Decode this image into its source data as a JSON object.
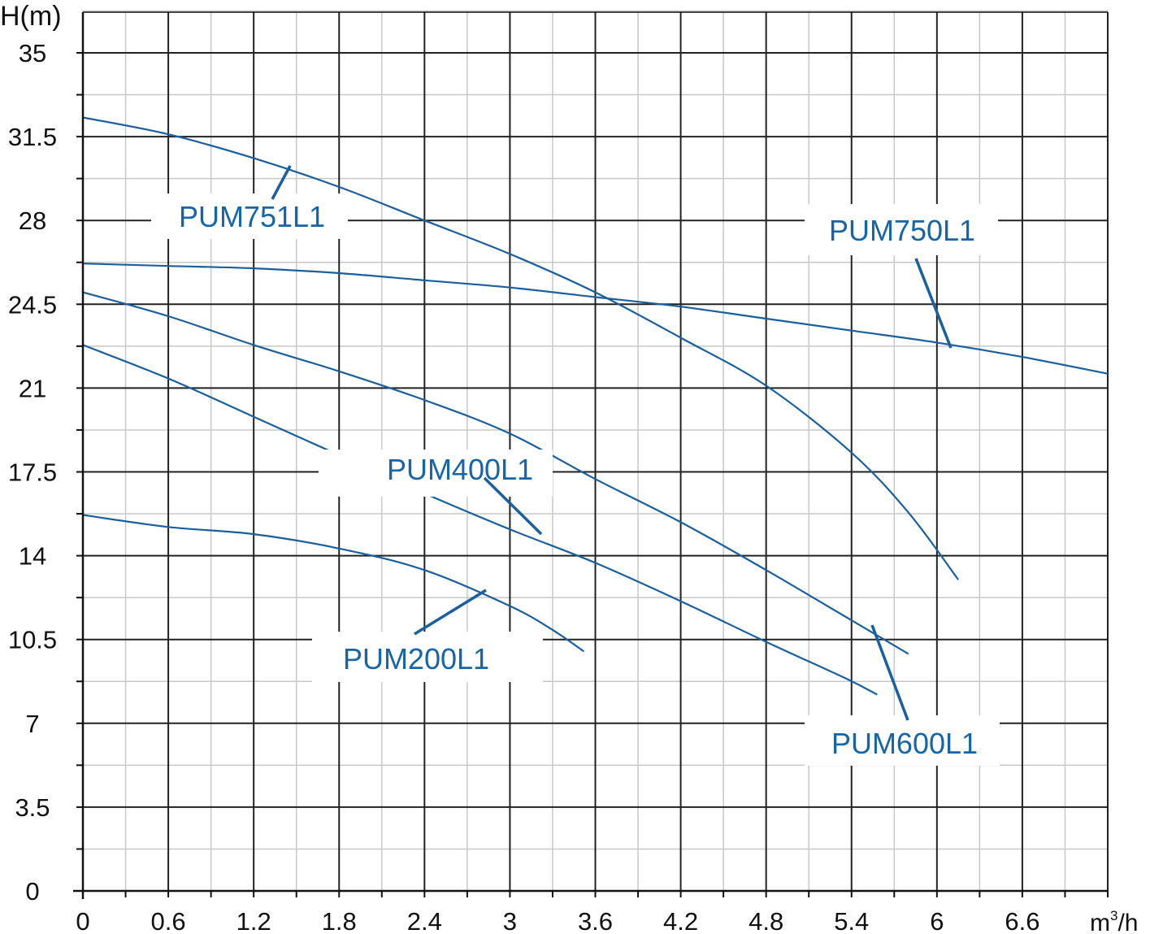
{
  "chart_data": {
    "type": "line",
    "ylabel": "H(m)",
    "xlabel_base": "m",
    "xlabel_sup": "3",
    "xlabel_tail": "/h",
    "xlim": [
      0,
      7.2
    ],
    "ylim": [
      0,
      35
    ],
    "x_ticks": [
      "0",
      "0.6",
      "1.2",
      "1.8",
      "2.4",
      "3",
      "3.6",
      "4.2",
      "4.8",
      "5.4",
      "6",
      "6.6"
    ],
    "y_ticks": [
      "0",
      "3.5",
      "7",
      "10.5",
      "14",
      "17.5",
      "21",
      "24.5",
      "28",
      "31.5",
      "35"
    ],
    "grid": true,
    "colors": {
      "curve": "#1a5f9e",
      "label": "#1565a8",
      "major_grid": "#222222",
      "minor_grid": "#c8c8c8"
    },
    "series": [
      {
        "name": "PUM751L1",
        "x": [
          0,
          0.6,
          1.2,
          1.8,
          2.4,
          3.0,
          3.6,
          4.2,
          4.8,
          5.4,
          5.8,
          6.15
        ],
        "y": [
          32.3,
          31.6,
          30.6,
          29.4,
          28.0,
          26.6,
          25.0,
          23.1,
          21.1,
          18.3,
          15.8,
          13.0
        ]
      },
      {
        "name": "PUM750L1",
        "x": [
          0,
          0.6,
          1.2,
          1.8,
          2.4,
          3.0,
          3.6,
          4.2,
          4.8,
          5.4,
          6.0,
          6.6,
          7.2
        ],
        "y": [
          26.2,
          26.1,
          26.0,
          25.8,
          25.5,
          25.2,
          24.8,
          24.4,
          23.9,
          23.4,
          22.9,
          22.3,
          21.6
        ]
      },
      {
        "name": "PUM600L1",
        "x": [
          0,
          0.6,
          1.2,
          1.8,
          2.4,
          3.0,
          3.6,
          4.2,
          4.8,
          5.4,
          5.8
        ],
        "y": [
          25.0,
          24.0,
          22.8,
          21.7,
          20.5,
          19.1,
          17.2,
          15.4,
          13.4,
          11.3,
          9.9
        ]
      },
      {
        "name": "PUM400L1",
        "x": [
          0,
          0.6,
          1.2,
          1.8,
          2.4,
          3.0,
          3.6,
          4.2,
          4.8,
          5.35,
          5.58
        ],
        "y": [
          22.8,
          21.4,
          19.8,
          18.2,
          16.6,
          15.1,
          13.7,
          12.1,
          10.4,
          8.9,
          8.2
        ]
      },
      {
        "name": "PUM200L1",
        "x": [
          0,
          0.6,
          1.2,
          1.8,
          2.4,
          3.0,
          3.3,
          3.52
        ],
        "y": [
          15.7,
          15.2,
          14.9,
          14.3,
          13.4,
          11.9,
          10.9,
          10.0
        ]
      }
    ],
    "annotations": [
      "PUM751L1",
      "PUM750L1",
      "PUM400L1",
      "PUM200L1",
      "PUM600L1"
    ]
  }
}
